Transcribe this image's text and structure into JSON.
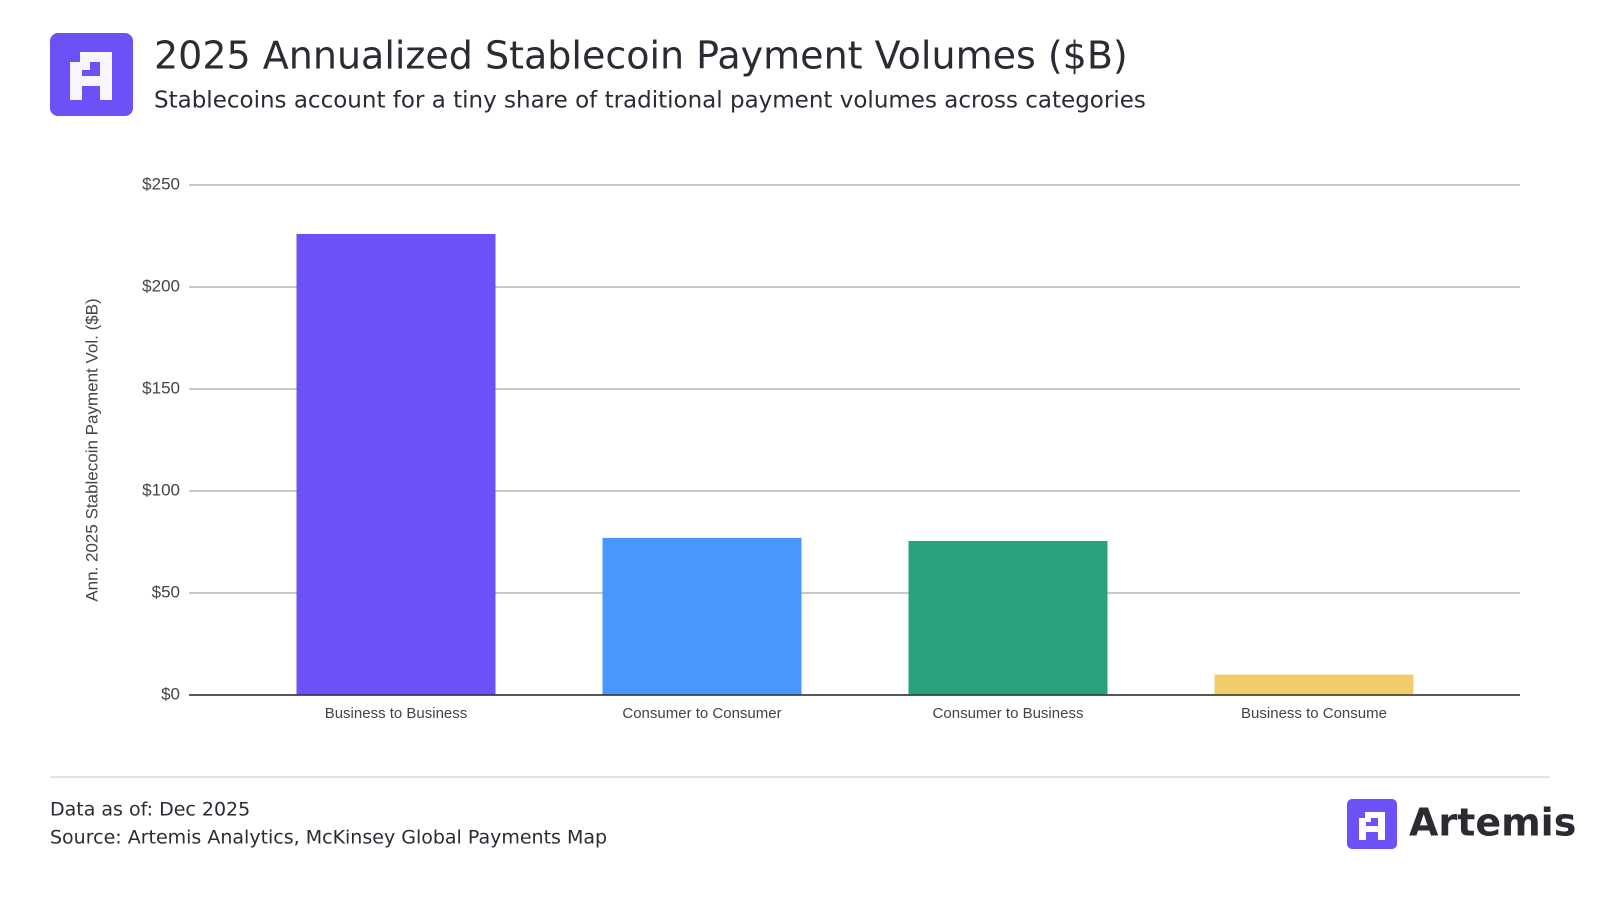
{
  "chart_data": {
    "type": "bar",
    "title": "2025 Annualized Stablecoin Payment Volumes ($B)",
    "subtitle": "Stablecoins account for a tiny share of traditional payment volumes across categories",
    "y_label": "Ann. 2025 Stablecoin Payment Vol. ($B)",
    "categories": [
      "Business to Business",
      "Consumer to Consumer",
      "Consumer to Business",
      "Business to Consume"
    ],
    "values": [
      226,
      77,
      75.5,
      10
    ],
    "colors": [
      "#6b52f7",
      "#4b96fd",
      "#29a37e",
      "#f0cc6a"
    ],
    "ylim": [
      0,
      250
    ],
    "yticks": [
      {
        "value": 0,
        "label": "$0"
      },
      {
        "value": 50,
        "label": "$50"
      },
      {
        "value": 100,
        "label": "$100"
      },
      {
        "value": 150,
        "label": "$150"
      },
      {
        "value": 200,
        "label": "$200"
      },
      {
        "value": 250,
        "label": "$250"
      }
    ],
    "grid": true
  },
  "footer": {
    "data_as_of": "Data as of: Dec 2025",
    "source": "Source: Artemis Analytics, McKinsey Global Payments Map"
  },
  "brand": "Artemis"
}
